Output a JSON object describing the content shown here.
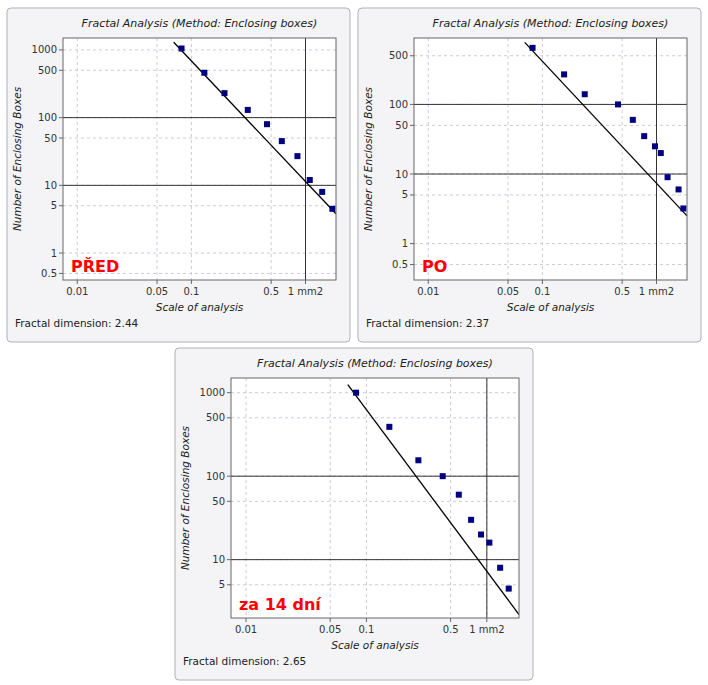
{
  "chart_data": [
    {
      "type": "scatter",
      "title": "Fractal Analysis (Method: Enclosing boxes)",
      "xlabel": "Scale of analysis",
      "ylabel": "Number of Enclosing Boxes",
      "log": true,
      "grid": true,
      "xlim": [
        0.0075,
        1.85
      ],
      "xticks": [
        0.01,
        0.05,
        0.1,
        0.5,
        {
          "value": 1.0,
          "label": "1 mm2"
        }
      ],
      "ylim": [
        0.4,
        1500
      ],
      "yticks": [
        0.5,
        1,
        5,
        10,
        50,
        100,
        500,
        1000
      ],
      "hlines": [
        10,
        100
      ],
      "vlines": [
        1.0
      ],
      "series": [
        {
          "type": "scatter",
          "marker": "square",
          "color": "#000080",
          "x": [
            0.082,
            0.13,
            0.195,
            0.312,
            0.46,
            0.62,
            0.85,
            1.09,
            1.4,
            1.72
          ],
          "values": [
            1050,
            460,
            230,
            130,
            80,
            45,
            27,
            12,
            8,
            4.5
          ]
        },
        {
          "type": "line",
          "color": "#000000",
          "x": [
            0.07,
            1.85
          ],
          "values": [
            1300,
            3.8
          ]
        }
      ],
      "annotations": [
        {
          "text": "PŘED",
          "color": "#ff0000"
        },
        {
          "text": "Fractal dimension: 2.44"
        }
      ]
    },
    {
      "type": "scatter",
      "title": "Fractal Analysis (Method: Enclosing boxes)",
      "xlabel": "Scale of analysis",
      "ylabel": "Number of Enclosing Boxes",
      "log": true,
      "grid": true,
      "xlim": [
        0.0075,
        1.85
      ],
      "xticks": [
        0.01,
        0.05,
        0.1,
        0.5,
        {
          "value": 1.0,
          "label": "1 mm2"
        }
      ],
      "ylim": [
        0.3,
        900
      ],
      "yticks": [
        0.5,
        1,
        5,
        10,
        50,
        100,
        500
      ],
      "hlines": [
        10,
        100
      ],
      "vlines": [
        1.0
      ],
      "series": [
        {
          "type": "scatter",
          "marker": "square",
          "color": "#000080",
          "x": [
            0.082,
            0.155,
            0.235,
            0.46,
            0.62,
            0.78,
            0.97,
            1.09,
            1.25,
            1.56,
            1.72
          ],
          "values": [
            650,
            270,
            140,
            100,
            60,
            35,
            25,
            20,
            9,
            6,
            3.2
          ]
        },
        {
          "type": "line",
          "color": "#000000",
          "x": [
            0.07,
            1.85
          ],
          "values": [
            780,
            2.5
          ]
        }
      ],
      "annotations": [
        {
          "text": "PO",
          "color": "#ff0000"
        },
        {
          "text": "Fractal dimension: 2.37"
        }
      ]
    },
    {
      "type": "scatter",
      "title": "Fractal Analysis (Method: Enclosing boxes)",
      "xlabel": "Scale of analysis",
      "ylabel": "Number of Enclosing Boxes",
      "log": true,
      "grid": true,
      "xlim": [
        0.0075,
        1.85
      ],
      "xticks": [
        0.01,
        0.05,
        0.1,
        0.5,
        {
          "value": 1.0,
          "label": "1 mm2"
        }
      ],
      "ylim": [
        2.0,
        1500
      ],
      "yticks": [
        5,
        10,
        50,
        100,
        500,
        1000
      ],
      "hlines": [
        10,
        100
      ],
      "vlines": [
        1.0
      ],
      "series": [
        {
          "type": "scatter",
          "marker": "square",
          "color": "#000080",
          "x": [
            0.082,
            0.155,
            0.27,
            0.43,
            0.585,
            0.74,
            0.895,
            1.05,
            1.29,
            1.52
          ],
          "values": [
            1000,
            390,
            155,
            100,
            60,
            30,
            20,
            16,
            8,
            4.5
          ]
        },
        {
          "type": "line",
          "color": "#000000",
          "x": [
            0.07,
            1.85
          ],
          "values": [
            1250,
            2.2
          ]
        }
      ],
      "annotations": [
        {
          "text": "za 14 dní",
          "color": "#ff0000"
        },
        {
          "text": "Fractal dimension: 2.65"
        }
      ]
    }
  ]
}
